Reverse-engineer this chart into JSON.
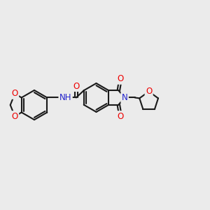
{
  "bg_color": "#ebebeb",
  "bond_color": "#1a1a1a",
  "bond_width": 1.5,
  "dbo": 0.055,
  "atom_colors": {
    "O": "#ee0000",
    "N": "#2222cc",
    "C": "#1a1a1a"
  },
  "fs": 8.5,
  "figsize": [
    3.0,
    3.0
  ],
  "dpi": 100
}
